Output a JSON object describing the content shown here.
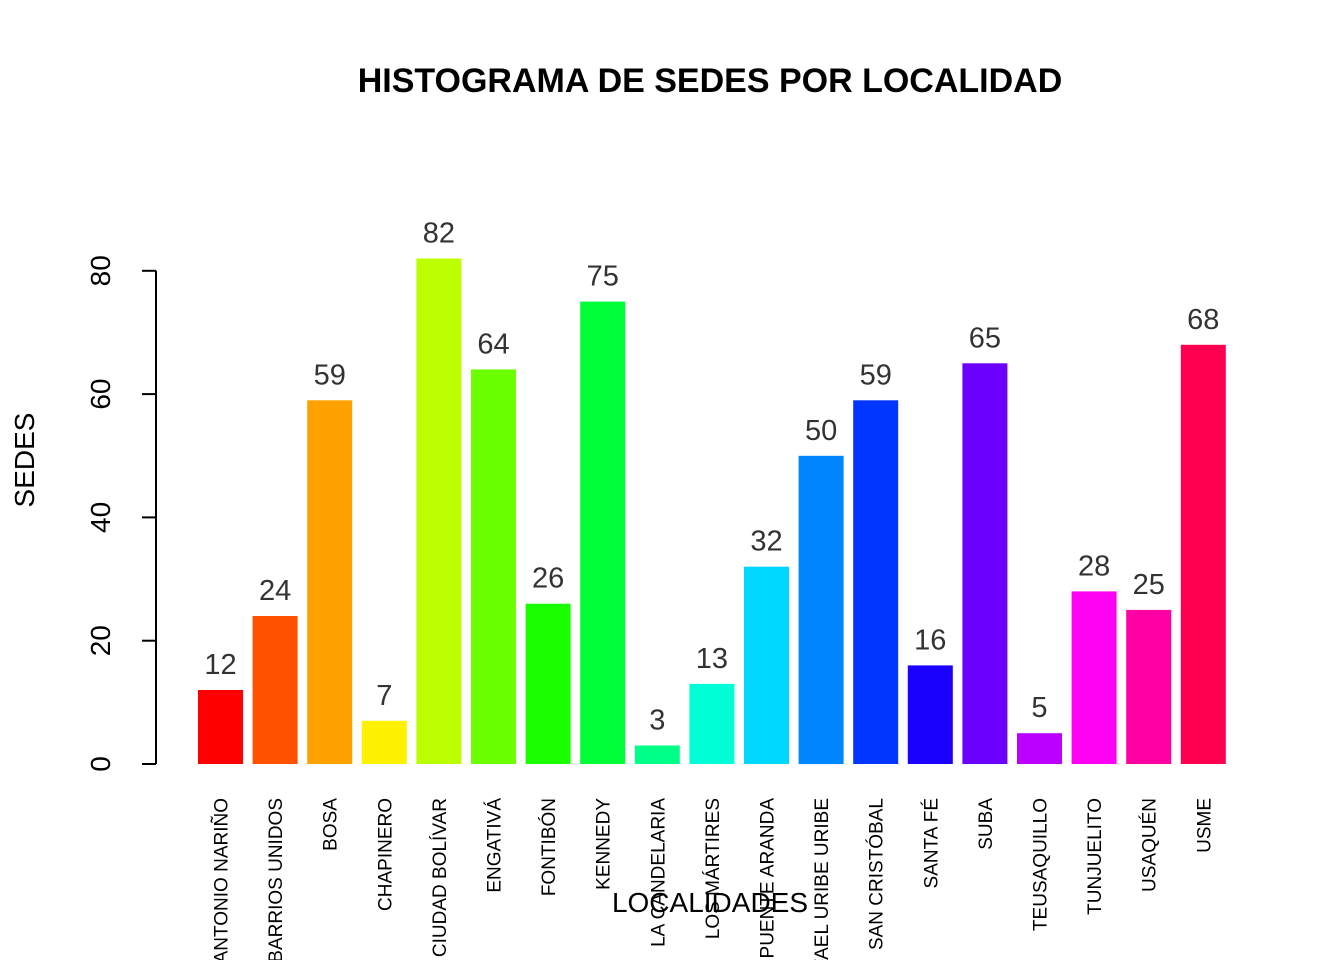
{
  "chart_data": {
    "type": "bar",
    "title": "HISTOGRAMA DE SEDES POR LOCALIDAD",
    "xlabel": "LOCALIDADES",
    "ylabel": "SEDES",
    "ylim": [
      0,
      90
    ],
    "yticks": [
      "0",
      "20",
      "40",
      "60",
      "80"
    ],
    "grid": false,
    "legend": "none",
    "categories": [
      "ANTONIO NARIÑO",
      "BARRIOS UNIDOS",
      "BOSA",
      "CHAPINERO",
      "CIUDAD BOLÍVAR",
      "ENGATIVÁ",
      "FONTIBÓN",
      "KENNEDY",
      "LA CANDELARIA",
      "LOS MÁRTIRES",
      "PUENTE ARANDA",
      "RAFAEL URIBE URIBE",
      "SAN CRISTÓBAL",
      "SANTA FÉ",
      "SUBA",
      "TEUSAQUILLO",
      "TUNJUELITO",
      "USAQUÉN",
      "USME"
    ],
    "values": [
      12,
      24,
      59,
      7,
      82,
      64,
      26,
      75,
      3,
      13,
      32,
      50,
      59,
      16,
      65,
      5,
      28,
      25,
      68
    ],
    "data_labels": [
      "12",
      "24",
      "59",
      "7",
      "82",
      "64",
      "26",
      "75",
      "3",
      "13",
      "32",
      "50",
      "59",
      "16",
      "65",
      "5",
      "28",
      "25",
      "68"
    ],
    "colors": [
      "#FF0000",
      "#FF5100",
      "#FFA200",
      "#FFF200",
      "#BCFF00",
      "#6BFF00",
      "#1AFF00",
      "#00FF36",
      "#00FF87",
      "#00FFD7",
      "#00D7FF",
      "#0087FF",
      "#0036FF",
      "#1A00FF",
      "#6B00FF",
      "#BC00FF",
      "#FF00F2",
      "#FF00A2",
      "#FF0051"
    ]
  }
}
